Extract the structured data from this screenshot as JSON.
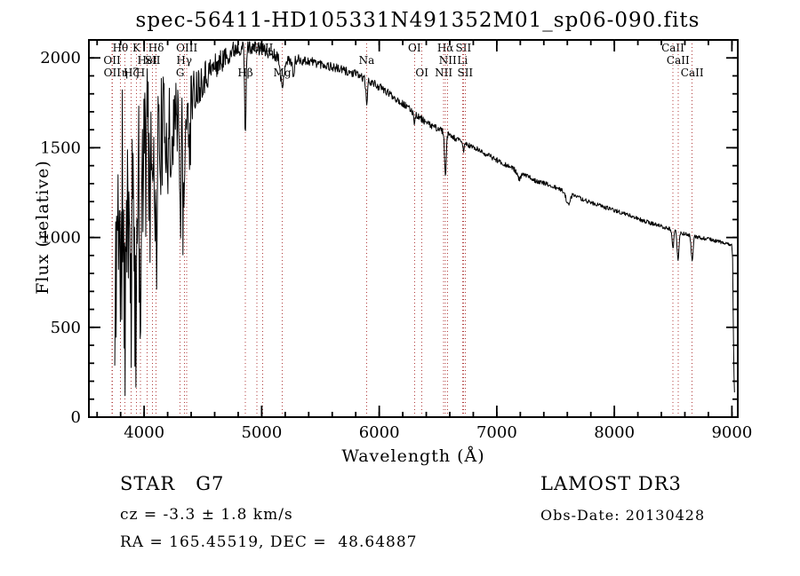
{
  "title": "spec-56411-HD105331N491352M01_sp06-090.fits",
  "footer": {
    "left": {
      "line1": "STAR   G7",
      "line2": "cz = -3.3 ± 1.8 km/s",
      "line3": "RA = 165.45519, DEC =  48.64887"
    },
    "right": {
      "line1": "LAMOST DR3",
      "line2": "Obs-Date: 20130428"
    }
  },
  "chart_data": {
    "type": "line",
    "title": "spec-56411-HD105331N491352M01_sp06-090.fits",
    "xlabel": "Wavelength (Å)",
    "ylabel": "Flux (relative)",
    "xlim": [
      3530,
      9050
    ],
    "ylim": [
      0,
      2100
    ],
    "xticks": [
      4000,
      5000,
      6000,
      7000,
      8000,
      9000
    ],
    "yticks": [
      0,
      500,
      1000,
      1500,
      2000
    ],
    "x_minor_step": 200,
    "y_minor_step": 100,
    "grid": false,
    "trace_color": "#000000",
    "marker_line_color": "#b03b3b",
    "marker_label_color": "#8b2a2a",
    "spectral_lines": [
      {
        "label": "Hθ",
        "wavelength": 3798,
        "row": 1
      },
      {
        "label": "K",
        "wavelength": 3934,
        "row": 1
      },
      {
        "label": "Hδ",
        "wavelength": 4102,
        "row": 1
      },
      {
        "label": "OIII",
        "wavelength": 4363,
        "row": 1
      },
      {
        "label": "OIII",
        "wavelength": 5007,
        "row": 1
      },
      {
        "label": "OI",
        "wavelength": 6300,
        "row": 1
      },
      {
        "label": "Hα",
        "wavelength": 6563,
        "row": 1
      },
      {
        "label": "SII",
        "wavelength": 6716,
        "row": 1
      },
      {
        "label": "CaII",
        "wavelength": 8498,
        "row": 1
      },
      {
        "label": "OII",
        "wavelength": 3727,
        "row": 2
      },
      {
        "label": "HeI",
        "wavelength": 4026,
        "row": 2
      },
      {
        "label": "SII",
        "wavelength": 4072,
        "row": 2
      },
      {
        "label": "Hγ",
        "wavelength": 4341,
        "row": 2
      },
      {
        "label": "Na",
        "wavelength": 5893,
        "row": 2
      },
      {
        "label": "NII",
        "wavelength": 6583,
        "row": 2
      },
      {
        "label": "Li",
        "wavelength": 6708,
        "row": 2
      },
      {
        "label": "CaII",
        "wavelength": 8542,
        "row": 2
      },
      {
        "label": "OII",
        "wavelength": 3729,
        "row": 3
      },
      {
        "label": "η",
        "wavelength": 3835,
        "row": 3
      },
      {
        "label": "Hζ",
        "wavelength": 3889,
        "row": 3
      },
      {
        "label": "H",
        "wavelength": 3968,
        "row": 3
      },
      {
        "label": "G",
        "wavelength": 4306,
        "row": 3
      },
      {
        "label": "Hβ",
        "wavelength": 4861,
        "row": 3
      },
      {
        "label": "Mg",
        "wavelength": 5175,
        "row": 3
      },
      {
        "label": "OI",
        "wavelength": 6363,
        "row": 3
      },
      {
        "label": "NII",
        "wavelength": 6548,
        "row": 3
      },
      {
        "label": "SII",
        "wavelength": 6731,
        "row": 3
      },
      {
        "label": "CaII",
        "wavelength": 8662,
        "row": 3
      },
      {
        "label": "",
        "wavelength": 4959,
        "row": 0
      }
    ],
    "spectrum": {
      "range": [
        3750,
        9022
      ],
      "sample_step": 4,
      "noise_seed": 11,
      "clamp": [
        120,
        2090
      ],
      "continuum": [
        [
          3750,
          500
        ],
        [
          3758,
          820
        ],
        [
          3770,
          1100
        ],
        [
          3790,
          1230
        ],
        [
          3820,
          1290
        ],
        [
          3870,
          1350
        ],
        [
          3920,
          1400
        ],
        [
          3970,
          1440
        ],
        [
          4020,
          1480
        ],
        [
          4080,
          1525
        ],
        [
          4140,
          1570
        ],
        [
          4200,
          1615
        ],
        [
          4260,
          1655
        ],
        [
          4320,
          1700
        ],
        [
          4380,
          1760
        ],
        [
          4440,
          1830
        ],
        [
          4500,
          1890
        ],
        [
          4560,
          1930
        ],
        [
          4620,
          1960
        ],
        [
          4700,
          2010
        ],
        [
          4780,
          2055
        ],
        [
          4860,
          2070
        ],
        [
          4940,
          2060
        ],
        [
          5020,
          2040
        ],
        [
          5120,
          2015
        ],
        [
          5220,
          1985
        ],
        [
          5320,
          1990
        ],
        [
          5420,
          1980
        ],
        [
          5520,
          1965
        ],
        [
          5620,
          1945
        ],
        [
          5720,
          1925
        ],
        [
          5820,
          1905
        ],
        [
          5920,
          1870
        ],
        [
          6020,
          1830
        ],
        [
          6120,
          1785
        ],
        [
          6220,
          1735
        ],
        [
          6320,
          1680
        ],
        [
          6420,
          1630
        ],
        [
          6520,
          1600
        ],
        [
          6620,
          1560
        ],
        [
          6720,
          1525
        ],
        [
          6820,
          1495
        ],
        [
          6920,
          1460
        ],
        [
          7020,
          1425
        ],
        [
          7120,
          1390
        ],
        [
          7220,
          1355
        ],
        [
          7320,
          1320
        ],
        [
          7420,
          1298
        ],
        [
          7520,
          1272
        ],
        [
          7620,
          1242
        ],
        [
          7720,
          1215
        ],
        [
          7820,
          1190
        ],
        [
          7920,
          1168
        ],
        [
          8020,
          1148
        ],
        [
          8120,
          1125
        ],
        [
          8220,
          1100
        ],
        [
          8320,
          1078
        ],
        [
          8420,
          1058
        ],
        [
          8520,
          1038
        ],
        [
          8620,
          1015
        ],
        [
          8720,
          1000
        ],
        [
          8820,
          988
        ],
        [
          8920,
          972
        ],
        [
          9000,
          958
        ],
        [
          9006,
          880
        ],
        [
          9012,
          520
        ],
        [
          9018,
          220
        ],
        [
          9022,
          130
        ]
      ],
      "absorption_lines": [
        {
          "center": 3727,
          "depth": 0.25,
          "sigma": 5
        },
        {
          "center": 3750,
          "depth": 0.45,
          "sigma": 5
        },
        {
          "center": 3798,
          "depth": 0.5,
          "sigma": 5
        },
        {
          "center": 3835,
          "depth": 0.55,
          "sigma": 6
        },
        {
          "center": 3889,
          "depth": 0.5,
          "sigma": 6
        },
        {
          "center": 3934,
          "depth": 0.65,
          "sigma": 8
        },
        {
          "center": 3968,
          "depth": 0.6,
          "sigma": 8
        },
        {
          "center": 4102,
          "depth": 0.4,
          "sigma": 7
        },
        {
          "center": 4227,
          "depth": 0.2,
          "sigma": 5
        },
        {
          "center": 4306,
          "depth": 0.25,
          "sigma": 9
        },
        {
          "center": 4341,
          "depth": 0.3,
          "sigma": 7
        },
        {
          "center": 4383,
          "depth": 0.18,
          "sigma": 5
        },
        {
          "center": 4861,
          "depth": 0.25,
          "sigma": 6
        },
        {
          "center": 5175,
          "depth": 0.09,
          "sigma": 12
        },
        {
          "center": 5270,
          "depth": 0.05,
          "sigma": 7
        },
        {
          "center": 5893,
          "depth": 0.07,
          "sigma": 7
        },
        {
          "center": 6300,
          "depth": 0.03,
          "sigma": 5
        },
        {
          "center": 6563,
          "depth": 0.16,
          "sigma": 7
        },
        {
          "center": 6716,
          "depth": 0.03,
          "sigma": 5
        },
        {
          "center": 7190,
          "depth": 0.03,
          "sigma": 15
        },
        {
          "center": 7605,
          "depth": 0.05,
          "sigma": 15
        },
        {
          "center": 8498,
          "depth": 0.1,
          "sigma": 7
        },
        {
          "center": 8542,
          "depth": 0.15,
          "sigma": 8
        },
        {
          "center": 8662,
          "depth": 0.14,
          "sigma": 8
        }
      ],
      "noise_amplitude": [
        [
          3750,
          520
        ],
        [
          3820,
          580
        ],
        [
          3950,
          540
        ],
        [
          4060,
          420
        ],
        [
          4180,
          300
        ],
        [
          4300,
          210
        ],
        [
          4420,
          130
        ],
        [
          4550,
          85
        ],
        [
          4700,
          58
        ],
        [
          4900,
          42
        ],
        [
          5100,
          34
        ],
        [
          5400,
          28
        ],
        [
          5800,
          24
        ],
        [
          6200,
          20
        ],
        [
          6600,
          17
        ],
        [
          7100,
          14
        ],
        [
          7700,
          12
        ],
        [
          8400,
          11
        ],
        [
          9022,
          10
        ]
      ],
      "deep_spike": {
        "below_wavelength": 4420,
        "probability": 0.09,
        "max_extra_depth": 550
      }
    }
  }
}
